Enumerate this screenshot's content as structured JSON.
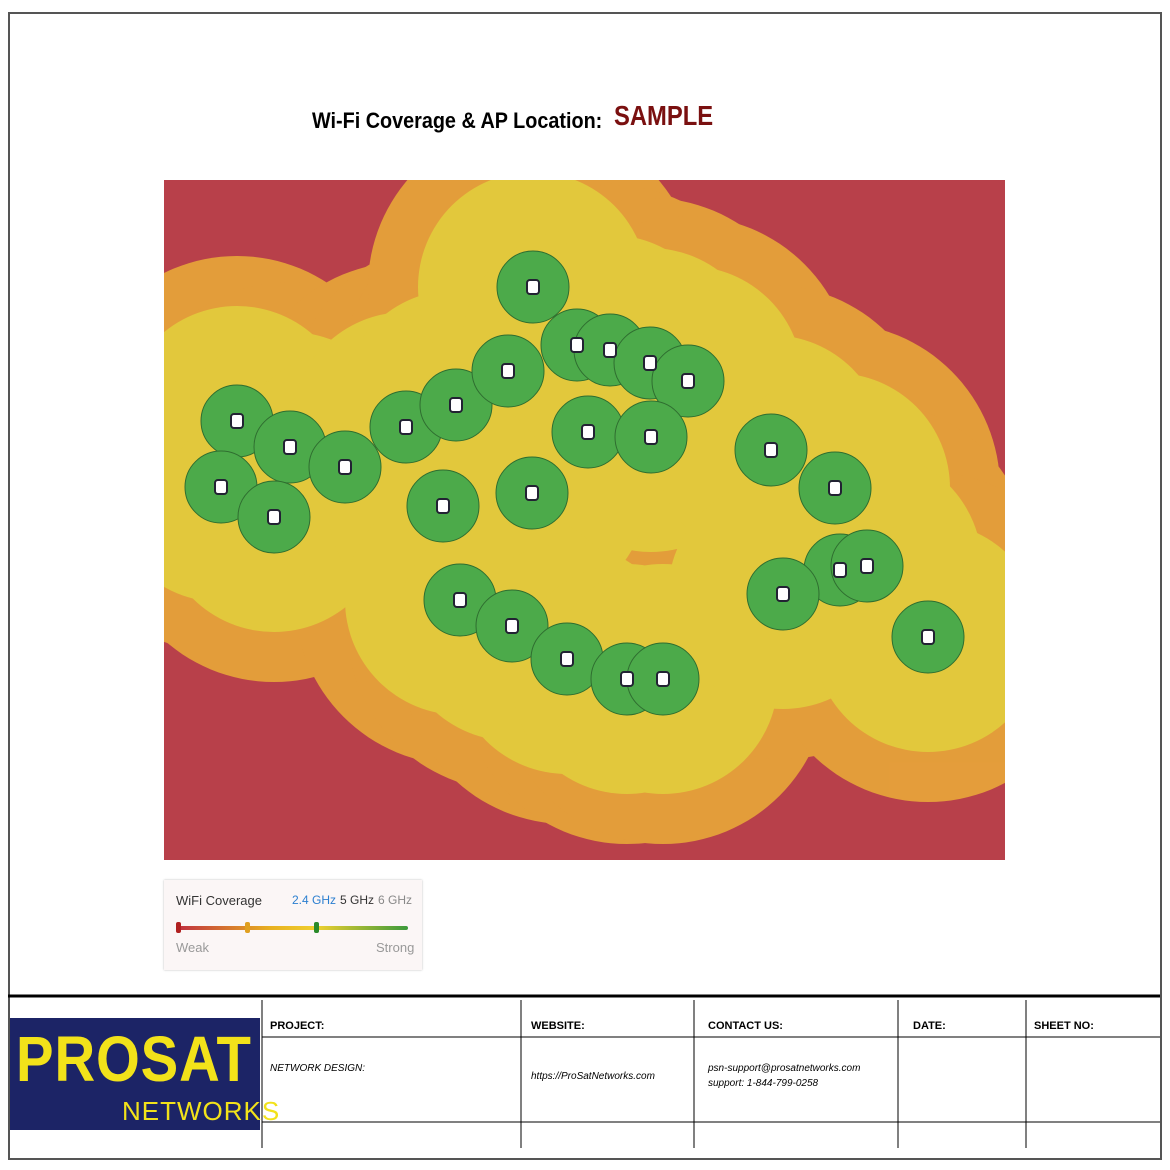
{
  "header": {
    "title": "Wi-Fi Coverage & AP Location:",
    "tag": "SAMPLE"
  },
  "legend": {
    "title": "WiFi Coverage",
    "bands": [
      "2.4 GHz",
      "5 GHz",
      "6 GHz"
    ],
    "low": "Weak",
    "high": "Strong"
  },
  "title_block": {
    "logo": {
      "name": "PROSAT",
      "sub": "NETWORKS"
    },
    "headers": [
      "PROJECT:",
      "WEBSITE:",
      "CONTACT US:",
      "DATE:",
      "SHEET NO:"
    ],
    "project": "NETWORK DESIGN:",
    "website": "https://ProSatNetworks.com",
    "contact": [
      "psn-support@prosatnetworks.com",
      "support: 1-844-799-0258"
    ]
  }
}
